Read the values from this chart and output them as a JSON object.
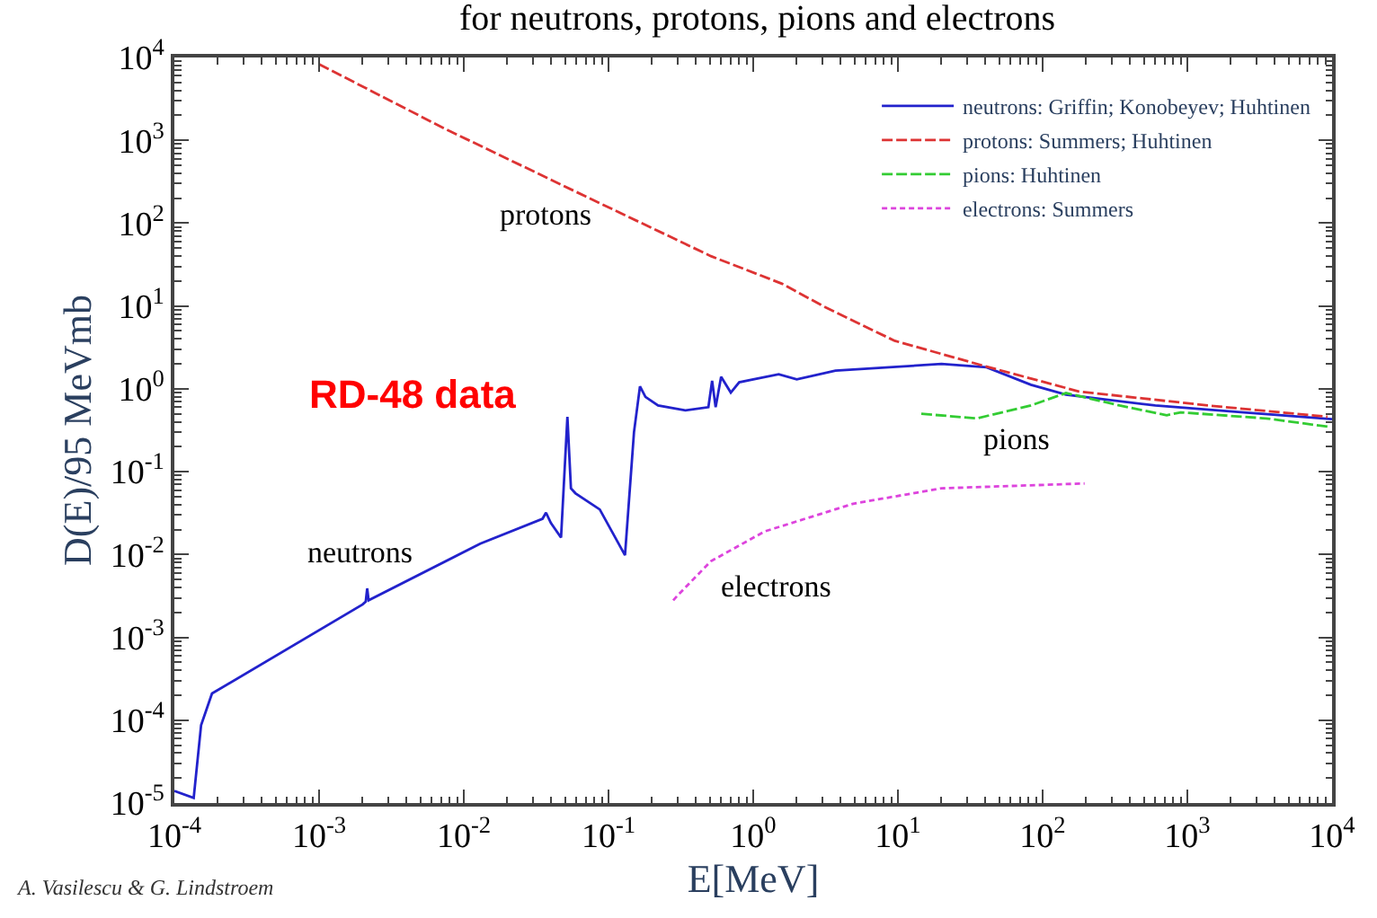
{
  "chart_data": {
    "type": "line",
    "title": "for neutrons, protons, pions and electrons",
    "xlabel": "E[MeV]",
    "ylabel": "D(E)/95 MeVmb",
    "log": "xy",
    "legend": "top right",
    "marker": "none",
    "xlim": [
      0.0001,
      10000
    ],
    "ylim": [
      1e-05,
      10000
    ],
    "xticks": [
      {
        "value": 0.0001,
        "label": "10$^{-4}$"
      },
      {
        "value": 0.001,
        "label": "10$^{-3}$"
      },
      {
        "value": 0.01,
        "label": "10$^{-2}$"
      },
      {
        "value": 0.1,
        "label": "10$^{-1}$"
      },
      {
        "value": 1,
        "label": "10$^{0}$"
      },
      {
        "value": 10,
        "label": "10$^{1}$"
      },
      {
        "value": 100,
        "label": "10$^{2}$"
      },
      {
        "value": 1000,
        "label": "10$^{3}$"
      },
      {
        "value": 10000,
        "label": "10$^{4}$"
      }
    ],
    "yticks": [
      {
        "value": 1e-05,
        "label": "10$^{-5}$"
      },
      {
        "value": 0.0001,
        "label": "10$^{-4}$"
      },
      {
        "value": 0.001,
        "label": "10$^{-3}$"
      },
      {
        "value": 0.01,
        "label": "10$^{-2}$"
      },
      {
        "value": 0.1,
        "label": "10$^{-1}$"
      },
      {
        "value": 1,
        "label": "10$^{0}$"
      },
      {
        "value": 10,
        "label": "10$^{1}$"
      },
      {
        "value": 100,
        "label": "10$^{2}$"
      },
      {
        "value": 1000,
        "label": "10$^{3}$"
      },
      {
        "value": 10000,
        "label": "10$^{4}$"
      }
    ],
    "series": [
      {
        "name": "neutrons: Griffin; Konobeyev; Huhtinen",
        "color": "#2222cc",
        "line_style": "solid",
        "x": [
          0.0001,
          0.000136,
          0.000153,
          0.000182,
          0.002,
          0.0021,
          0.00215,
          0.0022,
          0.013,
          0.035,
          0.037,
          0.04,
          0.047,
          0.052,
          0.055,
          0.059,
          0.087,
          0.13,
          0.15,
          0.165,
          0.18,
          0.22,
          0.34,
          0.49,
          0.52,
          0.55,
          0.6,
          0.7,
          0.8,
          1.0,
          1.5,
          2.0,
          3.7,
          8.7,
          20,
          41,
          83,
          145,
          600,
          2450,
          8700,
          10000
        ],
        "values": [
          1.4e-05,
          1.15e-05,
          8.7e-05,
          0.00021,
          0.0025,
          0.0027,
          0.0039,
          0.0028,
          0.0135,
          0.027,
          0.032,
          0.024,
          0.016,
          0.46,
          0.063,
          0.055,
          0.035,
          0.0098,
          0.3,
          1.07,
          0.8,
          0.63,
          0.55,
          0.6,
          1.25,
          0.6,
          1.4,
          0.9,
          1.2,
          1.3,
          1.5,
          1.3,
          1.66,
          1.82,
          2.0,
          1.82,
          1.12,
          0.85,
          0.63,
          0.52,
          0.44,
          0.43
        ]
      },
      {
        "name": "protons: Summers; Huhtinen",
        "color": "#dd3333",
        "line_style": "dashed",
        "x": [
          0.001,
          0.0074,
          0.072,
          0.51,
          1.58,
          3.1,
          9.5,
          39,
          178,
          1380,
          9300
        ],
        "values": [
          8300,
          1380,
          204,
          40,
          18.6,
          9.8,
          3.8,
          1.9,
          0.93,
          0.63,
          0.46
        ]
      },
      {
        "name": "pions: Huhtinen",
        "color": "#33cc33",
        "line_style": "dashed",
        "x": [
          14.5,
          35,
          83,
          145,
          340,
          720,
          900,
          3500,
          9300
        ],
        "values": [
          0.5,
          0.44,
          0.63,
          0.89,
          0.63,
          0.48,
          0.52,
          0.44,
          0.35
        ]
      },
      {
        "name": "electrons: Summers",
        "color": "#dd44dd",
        "line_style": "dotted",
        "x": [
          0.28,
          0.3,
          0.51,
          1.2,
          4.9,
          20,
          195
        ],
        "values": [
          0.0028,
          0.0032,
          0.0083,
          0.019,
          0.041,
          0.063,
          0.072
        ]
      }
    ],
    "annotations": [
      "protons",
      "neutrons",
      "pions",
      "electrons",
      "RD-48 data",
      "A. Vasilescu & G. Lindstroem"
    ]
  }
}
